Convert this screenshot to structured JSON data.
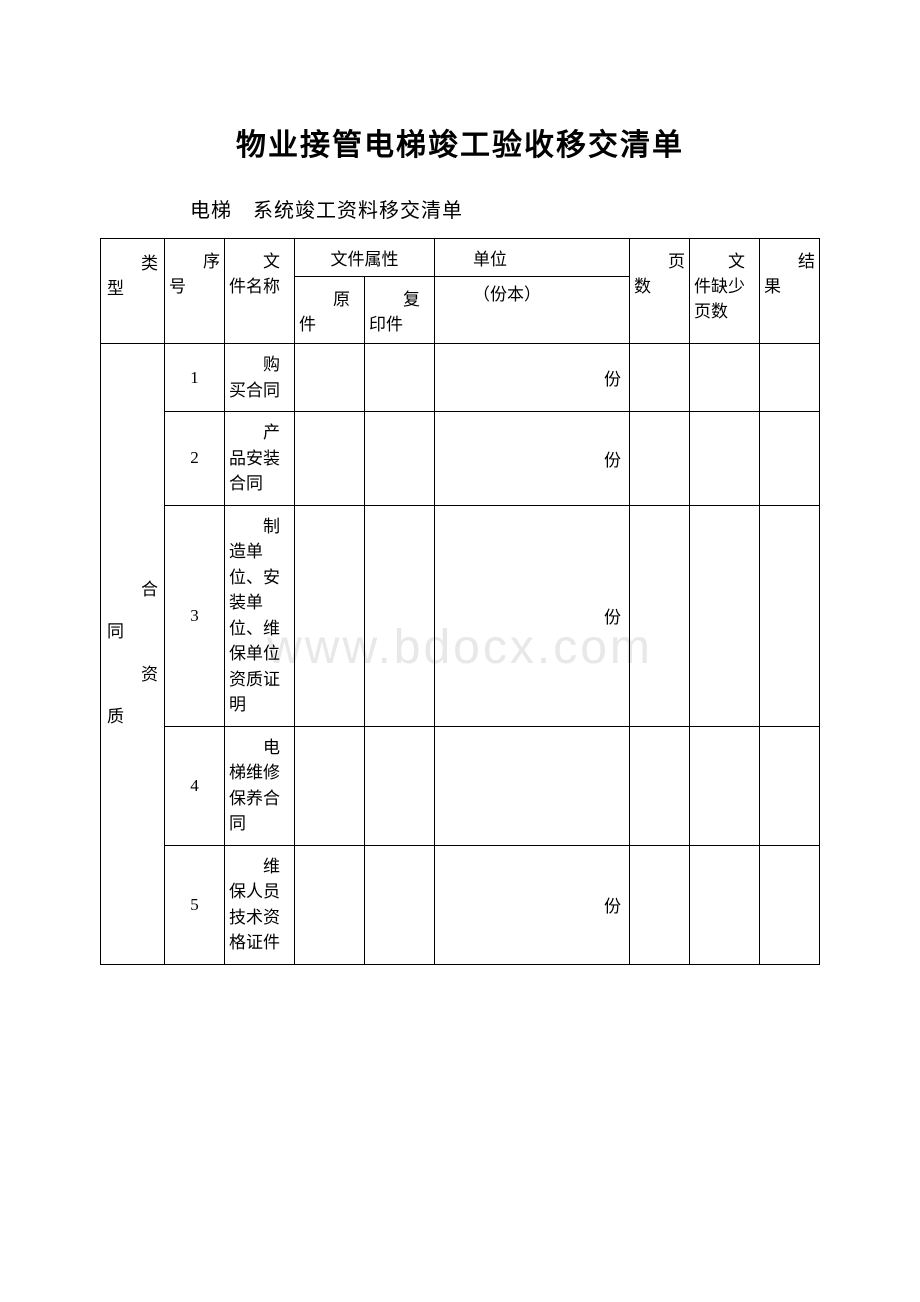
{
  "title": "物业接管电梯竣工验收移交清单",
  "subtitle": "电梯　系统竣工资料移交清单",
  "watermark": "www.bdocx.com",
  "headers": {
    "type": "类型",
    "seq": "序号",
    "name": "文件名称",
    "attr": "文件属性",
    "orig": "原件",
    "copy": "复印件",
    "unit_top": "单位",
    "unit_bottom": "（份本）",
    "page": "页数",
    "miss": "文件缺少页数",
    "result": "结果"
  },
  "category": {
    "line1": "合同",
    "line2": "资质"
  },
  "rows": [
    {
      "seq": "1",
      "name": "购买合同",
      "unit": "份"
    },
    {
      "seq": "2",
      "name": "产品安装合同",
      "unit": "份"
    },
    {
      "seq": "3",
      "name": "制造单位、安装单位、维保单位资质证明",
      "unit": "份"
    },
    {
      "seq": "4",
      "name": "电梯维修保养合同",
      "unit": ""
    },
    {
      "seq": "5",
      "name": "维保人员技术资格证件",
      "unit": "份"
    }
  ],
  "colors": {
    "text": "#000000",
    "border": "#000000",
    "background": "#ffffff",
    "watermark": "#e8e8e8"
  }
}
